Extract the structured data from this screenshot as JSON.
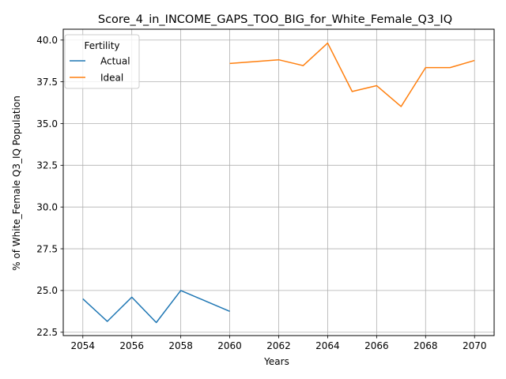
{
  "chart_data": {
    "type": "line",
    "title": "Score_4_in_INCOME_GAPS_TOO_BIG_for_White_Female_Q3_IQ",
    "xlabel": "Years",
    "ylabel": "% of White_Female Q3_IQ Population",
    "xlim": [
      2053.2,
      2070.8
    ],
    "ylim": [
      22.3,
      40.65
    ],
    "xticks": [
      2054,
      2056,
      2058,
      2060,
      2062,
      2064,
      2066,
      2068,
      2070
    ],
    "yticks": [
      22.5,
      25.0,
      27.5,
      30.0,
      32.5,
      35.0,
      37.5,
      40.0
    ],
    "ytick_labels": [
      "22.5",
      "25.0",
      "27.5",
      "30.0",
      "32.5",
      "35.0",
      "37.5",
      "40.0"
    ],
    "grid": true,
    "legend": {
      "title": "Fertility",
      "placement": "top-left"
    },
    "series": [
      {
        "name": "Actual",
        "color": "#1f77b4",
        "x": [
          2054,
          2055,
          2056,
          2057,
          2058,
          2060
        ],
        "y": [
          24.5,
          23.15,
          24.6,
          23.08,
          25.0,
          23.75
        ]
      },
      {
        "name": "Ideal",
        "color": "#ff7f0e",
        "x": [
          2060,
          2062,
          2063,
          2064,
          2065,
          2066,
          2067,
          2068,
          2069,
          2070
        ],
        "y": [
          38.6,
          38.82,
          38.47,
          39.82,
          36.92,
          37.27,
          36.02,
          38.35,
          38.35,
          38.78
        ]
      }
    ]
  }
}
